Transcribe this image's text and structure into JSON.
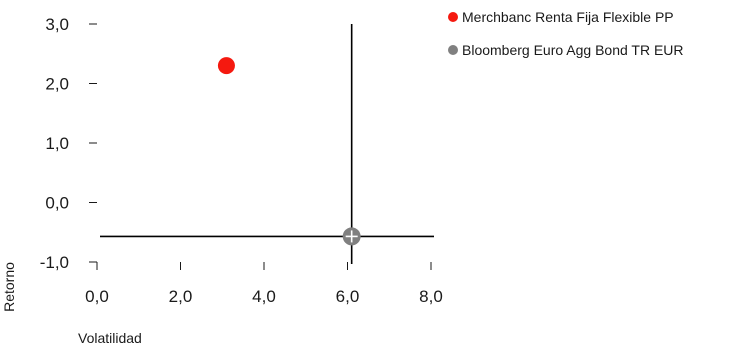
{
  "chart_data": {
    "type": "scatter",
    "title": "",
    "xlabel": "Volatilidad",
    "ylabel": "Retorno",
    "xlim": [
      0,
      8
    ],
    "ylim": [
      -1,
      3
    ],
    "x_ticks": [
      "0,0",
      "2,0",
      "4,0",
      "6,0",
      "8,0"
    ],
    "y_ticks": [
      "-1,0",
      "0,0",
      "1,0",
      "2,0",
      "3,0"
    ],
    "legend_position": "top-right",
    "grid": false,
    "series": [
      {
        "name": "Merchbanc Renta Fija Flexible PP",
        "color": "#f5190f",
        "x": 3.1,
        "y": 2.3,
        "marker": "circle"
      },
      {
        "name": "Bloomberg Euro Agg Bond TR EUR",
        "color": "#808080",
        "x": 6.1,
        "y": -0.57,
        "marker": "crosshair-circle"
      }
    ],
    "reference_lines": {
      "x": 6.1,
      "y": -0.57,
      "color": "#000000"
    }
  }
}
